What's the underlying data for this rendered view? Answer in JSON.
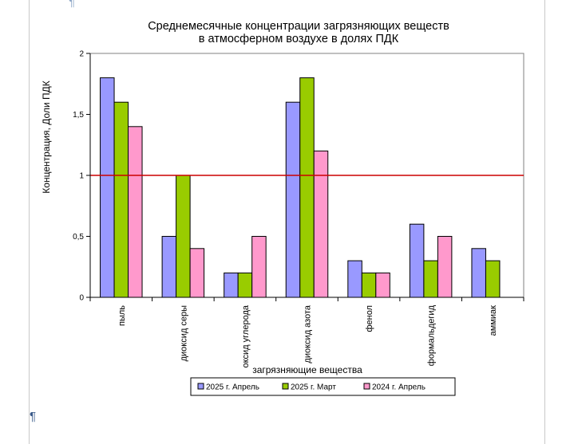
{
  "document": {
    "pilcrow_top": "¶",
    "pilcrow_bottom": "¶"
  },
  "chart_data": {
    "type": "bar",
    "title_line1": "Среднемесячные концентрации загрязняющих веществ",
    "title_line2": "в атмосферном воздухе в долях ПДК",
    "ylabel": "Концентрация, Доли ПДК",
    "xlabel": "загрязняющие вещества",
    "ylim": [
      0,
      2
    ],
    "yticks": [
      {
        "value": 0,
        "label": "0"
      },
      {
        "value": 0.5,
        "label": "0,5"
      },
      {
        "value": 1,
        "label": "1"
      },
      {
        "value": 1.5,
        "label": "1,5"
      },
      {
        "value": 2,
        "label": "2"
      }
    ],
    "categories": [
      "пыль",
      "диоксид серы",
      "оксид углерода",
      "диоксид азота",
      "фенол",
      "формальдегид",
      "аммиак"
    ],
    "series": [
      {
        "name": "2025 г. Апрель",
        "color": "#9999ff",
        "values": [
          1.8,
          0.5,
          0.2,
          1.6,
          0.3,
          0.6,
          0.4
        ]
      },
      {
        "name": "2025 г. Март",
        "color": "#99cc00",
        "values": [
          1.6,
          1.0,
          0.2,
          1.8,
          0.2,
          0.3,
          0.3
        ]
      },
      {
        "name": "2024 г. Апрель",
        "color": "#ff99cc",
        "values": [
          1.4,
          0.4,
          0.5,
          1.2,
          0.2,
          0.5,
          null
        ]
      }
    ],
    "reference_line": {
      "value": 1,
      "color": "#cc0000"
    },
    "grid": false,
    "legend_position": "bottom"
  }
}
